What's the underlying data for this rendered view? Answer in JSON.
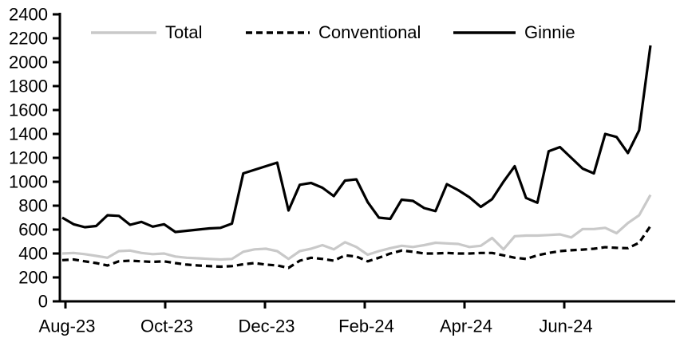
{
  "chart_data": {
    "type": "line",
    "title": "",
    "xlabel": "",
    "ylabel": "",
    "ylim": [
      0,
      2400
    ],
    "y_tick_step": 200,
    "y_ticks": [
      0,
      200,
      400,
      600,
      800,
      1000,
      1200,
      1400,
      1600,
      1800,
      2000,
      2200,
      2400
    ],
    "x_tick_labels": [
      "Aug-23",
      "Oct-23",
      "Dec-23",
      "Feb-24",
      "Apr-24",
      "Jun-24"
    ],
    "x_frequency": "weekly",
    "grid": false,
    "legend_position": "top",
    "axis_color": "#000000",
    "background_color": "#ffffff",
    "series": [
      {
        "name": "Total",
        "color": "#c9c9c9",
        "dash": "none",
        "values": [
          400,
          405,
          395,
          380,
          365,
          420,
          425,
          405,
          395,
          400,
          375,
          365,
          360,
          355,
          350,
          355,
          415,
          435,
          440,
          420,
          355,
          420,
          440,
          470,
          435,
          495,
          455,
          390,
          420,
          445,
          465,
          455,
          470,
          490,
          485,
          480,
          455,
          465,
          530,
          435,
          545,
          550,
          550,
          555,
          560,
          535,
          605,
          605,
          615,
          570,
          655,
          720,
          890
        ]
      },
      {
        "name": "Conventional",
        "color": "#000000",
        "dash": "8 5",
        "values": [
          345,
          350,
          335,
          320,
          300,
          335,
          340,
          335,
          330,
          335,
          320,
          307,
          300,
          295,
          290,
          295,
          310,
          320,
          307,
          300,
          280,
          340,
          365,
          355,
          340,
          385,
          375,
          335,
          365,
          400,
          425,
          415,
          400,
          400,
          405,
          400,
          400,
          405,
          405,
          385,
          365,
          355,
          385,
          405,
          420,
          427,
          433,
          440,
          453,
          447,
          445,
          490,
          630
        ]
      },
      {
        "name": "Ginnie",
        "color": "#000000",
        "dash": "none",
        "values": [
          700,
          645,
          620,
          630,
          720,
          715,
          640,
          665,
          625,
          645,
          580,
          590,
          600,
          610,
          615,
          650,
          1070,
          1100,
          1130,
          1160,
          760,
          975,
          990,
          950,
          880,
          1010,
          1020,
          830,
          700,
          690,
          850,
          840,
          780,
          755,
          980,
          930,
          870,
          790,
          855,
          1000,
          1130,
          865,
          825,
          1255,
          1290,
          1200,
          1110,
          1070,
          1400,
          1375,
          1240,
          1430,
          2140
        ]
      }
    ]
  }
}
